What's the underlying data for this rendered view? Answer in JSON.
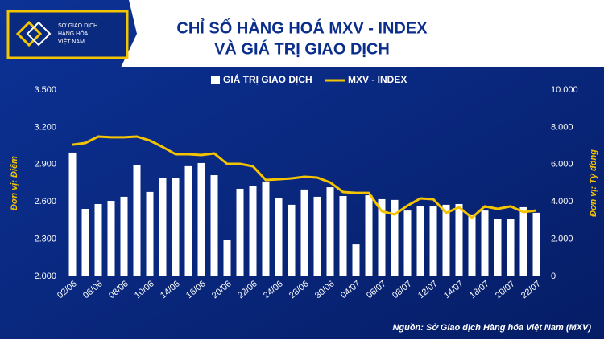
{
  "logo": {
    "lines": [
      "SỞ GIAO DỊCH",
      "HÀNG HÓA",
      "VIỆT NAM"
    ]
  },
  "chart_data": {
    "type": "combo",
    "title": "CHỈ SỐ HÀNG HOÁ MXV - INDEX",
    "subtitle": "VÀ GIÁ TRỊ GIAO DỊCH",
    "ylabel": "Đơn vị: Điểm",
    "y2label": "Đơn vị: Tỷ đồng",
    "source": "Nguồn: Sở Giao dịch Hàng hóa Việt Nam (MXV)",
    "categories": [
      "02/06",
      null,
      "06/06",
      null,
      "08/06",
      null,
      "10/06",
      null,
      "14/06",
      null,
      "16/06",
      null,
      "20/06",
      null,
      "22/06",
      null,
      "24/06",
      null,
      "28/06",
      null,
      "30/06",
      null,
      "04/07",
      null,
      "06/07",
      null,
      "08/07",
      null,
      "12/07",
      null,
      "14/07",
      null,
      "18/07",
      null,
      "20/07",
      null,
      "22/07"
    ],
    "series": [
      {
        "name": "GIÁ TRỊ GIAO DỊCH",
        "type": "bar",
        "axis": "y2",
        "color": "#ffffff",
        "values": [
          6640,
          3620,
          3880,
          4050,
          4270,
          5990,
          4530,
          5260,
          5300,
          5910,
          6080,
          5430,
          1940,
          4700,
          4870,
          5090,
          4180,
          3840,
          4660,
          4270,
          4780,
          4310,
          1720,
          4350,
          4140,
          4100,
          3530,
          3750,
          3790,
          3840,
          3880,
          3280,
          3530,
          3060,
          3060,
          3710,
          3410
        ]
      },
      {
        "name": "MXV - INDEX",
        "type": "line",
        "color": "#f5c400",
        "values": [
          3060,
          3073,
          3125,
          3119,
          3119,
          3125,
          3093,
          3041,
          2983,
          2983,
          2976,
          2989,
          2905,
          2905,
          2886,
          2776,
          2782,
          2789,
          2802,
          2795,
          2756,
          2679,
          2672,
          2672,
          2524,
          2498,
          2569,
          2627,
          2621,
          2511,
          2556,
          2472,
          2563,
          2543,
          2563,
          2517,
          2530
        ]
      }
    ],
    "ylim": [
      2000,
      3500
    ],
    "yticks": [
      {
        "value": 2000,
        "label": "2.000"
      },
      {
        "value": 2300,
        "label": "2.300"
      },
      {
        "value": 2600,
        "label": "2.600"
      },
      {
        "value": 2900,
        "label": "2.900"
      },
      {
        "value": 3200,
        "label": "3.200"
      },
      {
        "value": 3500,
        "label": "3.500"
      }
    ],
    "y2lim": [
      0,
      10000
    ],
    "y2ticks": [
      0,
      {
        "value": 2000,
        "label": "2.000"
      },
      {
        "value": 4000,
        "label": "4.000"
      },
      {
        "value": 6000,
        "label": "6.000"
      },
      {
        "value": 8000,
        "label": "8.000"
      },
      {
        "value": 10000,
        "label": "10.000"
      }
    ]
  }
}
